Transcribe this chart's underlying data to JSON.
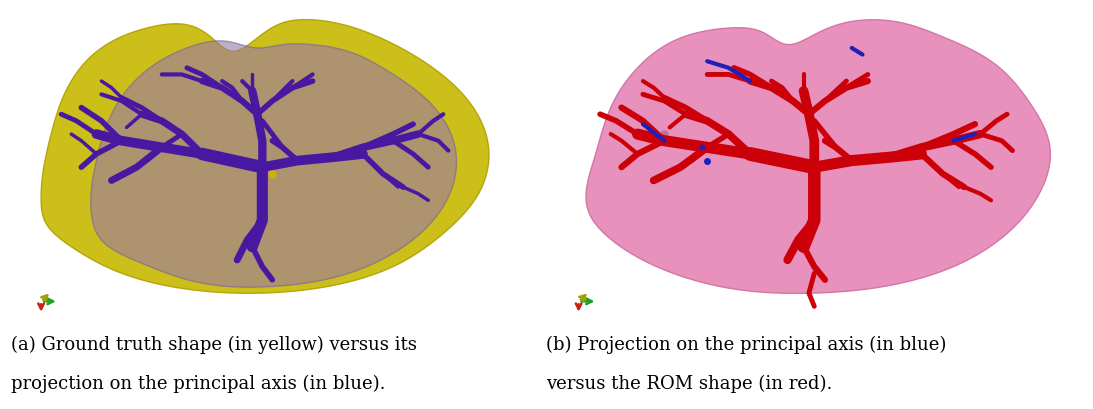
{
  "background_color": "#ffffff",
  "fig_width": 10.93,
  "fig_height": 4.09,
  "caption_left_line1": "(a) Ground truth shape (in yellow) versus its",
  "caption_left_line2": "projection on the principal axis (in blue).",
  "caption_right_line1": "(b) Projection on the principal axis (in blue)",
  "caption_right_line2": "versus the ROM shape (in red).",
  "caption_fontsize": 13.0,
  "caption_font": "serif"
}
